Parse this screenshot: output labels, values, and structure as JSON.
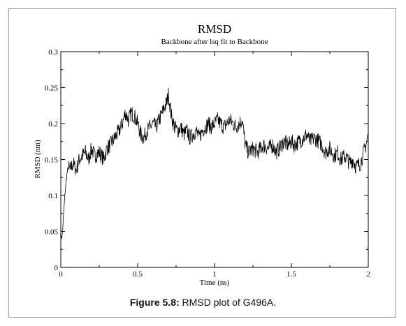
{
  "chart_data": {
    "type": "line",
    "title": "RMSD",
    "subtitle": "Backbone after lsq fit to Backbone",
    "xlabel": "Time (ns)",
    "ylabel": "RMSD (nm)",
    "xlim": [
      0,
      2
    ],
    "ylim": [
      0,
      0.3
    ],
    "x_ticks": [
      "0",
      "0.5",
      "1",
      "1.5",
      "2"
    ],
    "y_ticks": [
      "0",
      "0.05",
      "0.1",
      "0.15",
      "0.2",
      "0.25",
      "0.3"
    ],
    "grid": false,
    "legend": "none",
    "series": [
      {
        "color": "#000000",
        "x": [
          0.0,
          0.01,
          0.02,
          0.03,
          0.04,
          0.05,
          0.06,
          0.08,
          0.1,
          0.12,
          0.14,
          0.16,
          0.18,
          0.2,
          0.22,
          0.25,
          0.28,
          0.3,
          0.32,
          0.35,
          0.38,
          0.4,
          0.42,
          0.44,
          0.46,
          0.48,
          0.5,
          0.52,
          0.54,
          0.56,
          0.58,
          0.6,
          0.62,
          0.64,
          0.66,
          0.68,
          0.69,
          0.7,
          0.71,
          0.72,
          0.74,
          0.76,
          0.78,
          0.8,
          0.82,
          0.84,
          0.86,
          0.88,
          0.9,
          0.92,
          0.94,
          0.96,
          0.98,
          1.0,
          1.02,
          1.04,
          1.06,
          1.08,
          1.1,
          1.12,
          1.14,
          1.16,
          1.18,
          1.2,
          1.22,
          1.25,
          1.28,
          1.3,
          1.32,
          1.35,
          1.38,
          1.4,
          1.42,
          1.45,
          1.48,
          1.5,
          1.52,
          1.55,
          1.58,
          1.6,
          1.62,
          1.65,
          1.68,
          1.7,
          1.72,
          1.75,
          1.78,
          1.8,
          1.82,
          1.85,
          1.88,
          1.9,
          1.92,
          1.95,
          1.97,
          1.99,
          2.0
        ],
        "y": [
          0.04,
          0.045,
          0.08,
          0.11,
          0.13,
          0.14,
          0.135,
          0.145,
          0.135,
          0.15,
          0.155,
          0.16,
          0.15,
          0.165,
          0.155,
          0.16,
          0.15,
          0.165,
          0.17,
          0.18,
          0.19,
          0.2,
          0.215,
          0.205,
          0.215,
          0.21,
          0.2,
          0.185,
          0.18,
          0.19,
          0.195,
          0.2,
          0.195,
          0.205,
          0.215,
          0.225,
          0.23,
          0.24,
          0.225,
          0.21,
          0.195,
          0.19,
          0.195,
          0.185,
          0.19,
          0.18,
          0.185,
          0.19,
          0.18,
          0.19,
          0.195,
          0.2,
          0.195,
          0.2,
          0.205,
          0.2,
          0.195,
          0.2,
          0.205,
          0.2,
          0.195,
          0.2,
          0.205,
          0.17,
          0.16,
          0.165,
          0.16,
          0.165,
          0.17,
          0.165,
          0.17,
          0.16,
          0.165,
          0.175,
          0.17,
          0.175,
          0.17,
          0.175,
          0.18,
          0.185,
          0.175,
          0.18,
          0.175,
          0.17,
          0.16,
          0.165,
          0.155,
          0.16,
          0.15,
          0.155,
          0.145,
          0.15,
          0.14,
          0.145,
          0.16,
          0.175,
          0.185
        ]
      }
    ]
  },
  "caption": {
    "label": "Figure 5.8:",
    "text": " RMSD plot of G496A."
  }
}
